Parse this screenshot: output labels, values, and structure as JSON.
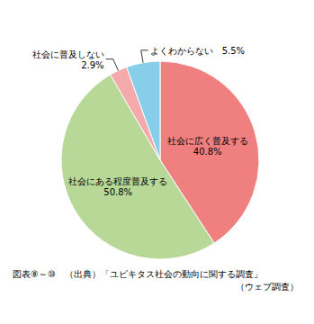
{
  "chart_data": {
    "type": "pie",
    "values": [
      40.8,
      50.8,
      2.9,
      5.5
    ],
    "value_labels": [
      "社会に広く普及する\n40.8%",
      "社会にある程度普及する\n50.8%",
      "社会に普及しない\n2.9%",
      "よくわからない　5.5%"
    ],
    "colors": [
      "#F08080",
      "#B8D898",
      "#F4AAAA",
      "#87CEEB"
    ],
    "data_labels": true,
    "annotations": [
      "図表⑧～⑩　（出典）「ユビキタス社会の動向に関する調査」",
      "（ウェブ調査）"
    ]
  }
}
